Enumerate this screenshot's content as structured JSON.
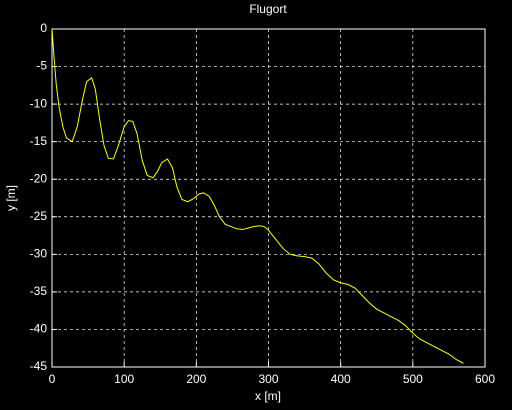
{
  "chart_data": {
    "type": "line",
    "title": "Flugort",
    "x_label": "x [m]",
    "y_label": "y [m]",
    "x": [
      0,
      3,
      6,
      10,
      15,
      20,
      28,
      35,
      42,
      48,
      55,
      60,
      66,
      72,
      78,
      85,
      92,
      100,
      106,
      112,
      118,
      125,
      132,
      140,
      146,
      152,
      160,
      167,
      173,
      180,
      188,
      196,
      203,
      210,
      218,
      225,
      232,
      240,
      248,
      256,
      264,
      272,
      280,
      288,
      294,
      300,
      310,
      320,
      330,
      340,
      350,
      360,
      370,
      380,
      390,
      400,
      410,
      420,
      430,
      440,
      450,
      460,
      470,
      480,
      490,
      500,
      510,
      520,
      530,
      540,
      550,
      560,
      570
    ],
    "series": [
      {
        "name": "Flugort",
        "color": "#ffff00",
        "values": [
          0,
          -4,
          -7.5,
          -10.5,
          -13,
          -14.5,
          -15,
          -13,
          -9.5,
          -7,
          -6.5,
          -8,
          -12,
          -15.5,
          -17.2,
          -17.3,
          -15.5,
          -13,
          -12.2,
          -12.3,
          -14,
          -17.5,
          -19.5,
          -19.8,
          -19,
          -17.8,
          -17.3,
          -18.5,
          -21,
          -22.7,
          -23,
          -22.6,
          -22,
          -21.8,
          -22.3,
          -23.5,
          -25,
          -26,
          -26.3,
          -26.6,
          -26.7,
          -26.5,
          -26.3,
          -26.2,
          -26.3,
          -26.8,
          -28,
          -29.2,
          -30,
          -30.2,
          -30.3,
          -30.5,
          -31.3,
          -32.5,
          -33.4,
          -33.8,
          -34,
          -34.5,
          -35.5,
          -36.5,
          -37.3,
          -37.8,
          -38.3,
          -38.8,
          -39.5,
          -40.5,
          -41.3,
          -41.8,
          -42.3,
          -42.8,
          -43.3,
          -44,
          -44.5
        ]
      }
    ],
    "xlim": [
      0,
      600
    ],
    "ylim": [
      -45,
      0
    ],
    "xticks": [
      0,
      100,
      200,
      300,
      400,
      500,
      600
    ],
    "yticks": [
      0,
      -5,
      -10,
      -15,
      -20,
      -25,
      -30,
      -35,
      -40,
      -45
    ],
    "grid": true
  }
}
